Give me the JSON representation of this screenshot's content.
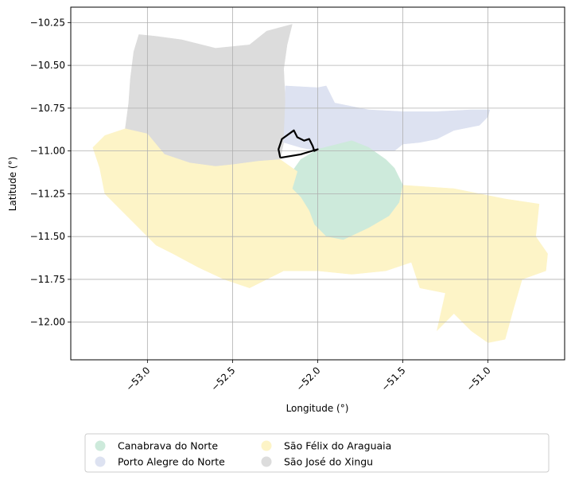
{
  "chart_data": {
    "type": "map",
    "xlabel": "Longitude (°)",
    "ylabel": "Latitude (°)",
    "xlim": [
      -53.45,
      -50.55
    ],
    "ylim": [
      -12.22,
      -10.16
    ],
    "x_ticks": [
      -53.0,
      -52.5,
      -52.0,
      -51.5,
      -51.0
    ],
    "x_tick_labels": [
      "−53.0",
      "−52.5",
      "−52.0",
      "−51.5",
      "−51.0"
    ],
    "y_ticks": [
      -10.25,
      -10.5,
      -10.75,
      -11.0,
      -11.25,
      -11.5,
      -11.75,
      -12.0
    ],
    "y_tick_labels": [
      "−10.25",
      "−10.50",
      "−10.75",
      "−11.00",
      "−11.25",
      "−11.50",
      "−11.75",
      "−12.00"
    ],
    "grid": true,
    "legend_position": "bottom",
    "regions": [
      {
        "name": "São José do Xingu",
        "color": "#dcdcdc",
        "coords": [
          [
            -53.13,
            -10.87
          ],
          [
            -53.11,
            -10.72
          ],
          [
            -53.1,
            -10.58
          ],
          [
            -53.08,
            -10.42
          ],
          [
            -53.05,
            -10.32
          ],
          [
            -52.95,
            -10.33
          ],
          [
            -52.8,
            -10.35
          ],
          [
            -52.6,
            -10.4
          ],
          [
            -52.4,
            -10.38
          ],
          [
            -52.3,
            -10.3
          ],
          [
            -52.15,
            -10.26
          ],
          [
            -52.18,
            -10.38
          ],
          [
            -52.2,
            -10.52
          ],
          [
            -52.19,
            -10.72
          ],
          [
            -52.2,
            -10.95
          ],
          [
            -52.22,
            -11.05
          ],
          [
            -52.35,
            -11.06
          ],
          [
            -52.5,
            -11.08
          ],
          [
            -52.6,
            -11.09
          ],
          [
            -52.75,
            -11.07
          ],
          [
            -52.9,
            -11.02
          ],
          [
            -53.1,
            -10.9
          ]
        ]
      },
      {
        "name": "Porto Alegre do Norte",
        "color": "#dde2f1",
        "coords": [
          [
            -52.19,
            -10.62
          ],
          [
            -52.0,
            -10.63
          ],
          [
            -51.95,
            -10.62
          ],
          [
            -51.9,
            -10.72
          ],
          [
            -51.8,
            -10.74
          ],
          [
            -51.7,
            -10.76
          ],
          [
            -51.5,
            -10.77
          ],
          [
            -51.3,
            -10.77
          ],
          [
            -51.1,
            -10.76
          ],
          [
            -50.99,
            -10.76
          ],
          [
            -51.0,
            -10.8
          ],
          [
            -51.05,
            -10.85
          ],
          [
            -51.2,
            -10.88
          ],
          [
            -51.3,
            -10.93
          ],
          [
            -51.4,
            -10.95
          ],
          [
            -51.5,
            -10.96
          ],
          [
            -51.55,
            -11.0
          ],
          [
            -51.7,
            -11.0
          ],
          [
            -51.85,
            -11.0
          ],
          [
            -52.0,
            -11.0
          ],
          [
            -52.1,
            -10.98
          ],
          [
            -52.2,
            -10.95
          ],
          [
            -52.19,
            -10.72
          ]
        ]
      },
      {
        "name": "Canabrava do Norte",
        "color": "#cdeadb",
        "coords": [
          [
            -52.0,
            -10.99
          ],
          [
            -51.8,
            -10.94
          ],
          [
            -51.7,
            -10.98
          ],
          [
            -51.6,
            -11.05
          ],
          [
            -51.55,
            -11.1
          ],
          [
            -51.5,
            -11.2
          ],
          [
            -51.52,
            -11.3
          ],
          [
            -51.58,
            -11.38
          ],
          [
            -51.7,
            -11.45
          ],
          [
            -51.85,
            -11.52
          ],
          [
            -51.95,
            -11.5
          ],
          [
            -52.02,
            -11.43
          ],
          [
            -52.05,
            -11.35
          ],
          [
            -52.1,
            -11.27
          ],
          [
            -52.15,
            -11.22
          ],
          [
            -52.15,
            -11.12
          ],
          [
            -52.1,
            -11.05
          ]
        ]
      },
      {
        "name": "São Félix do Araguaia",
        "color": "#fdf4c7",
        "coords": [
          [
            -53.32,
            -10.98
          ],
          [
            -53.25,
            -10.91
          ],
          [
            -53.13,
            -10.87
          ],
          [
            -53.0,
            -10.9
          ],
          [
            -52.9,
            -11.02
          ],
          [
            -52.75,
            -11.07
          ],
          [
            -52.6,
            -11.09
          ],
          [
            -52.5,
            -11.08
          ],
          [
            -52.35,
            -11.06
          ],
          [
            -52.22,
            -11.05
          ],
          [
            -52.12,
            -11.12
          ],
          [
            -52.15,
            -11.22
          ],
          [
            -52.1,
            -11.27
          ],
          [
            -52.05,
            -11.35
          ],
          [
            -52.02,
            -11.43
          ],
          [
            -51.95,
            -11.5
          ],
          [
            -51.85,
            -11.52
          ],
          [
            -51.7,
            -11.45
          ],
          [
            -51.58,
            -11.38
          ],
          [
            -51.52,
            -11.3
          ],
          [
            -51.5,
            -11.2
          ],
          [
            -51.2,
            -11.22
          ],
          [
            -50.9,
            -11.28
          ],
          [
            -50.7,
            -11.31
          ],
          [
            -50.72,
            -11.5
          ],
          [
            -50.65,
            -11.6
          ],
          [
            -50.66,
            -11.7
          ],
          [
            -50.8,
            -11.75
          ],
          [
            -50.85,
            -11.92
          ],
          [
            -50.9,
            -12.1
          ],
          [
            -51.0,
            -12.12
          ],
          [
            -51.1,
            -12.05
          ],
          [
            -51.2,
            -11.95
          ],
          [
            -51.3,
            -12.05
          ],
          [
            -51.25,
            -11.83
          ],
          [
            -51.4,
            -11.8
          ],
          [
            -51.45,
            -11.65
          ],
          [
            -51.6,
            -11.7
          ],
          [
            -51.8,
            -11.72
          ],
          [
            -52.0,
            -11.7
          ],
          [
            -52.2,
            -11.7
          ],
          [
            -52.4,
            -11.8
          ],
          [
            -52.55,
            -11.75
          ],
          [
            -52.7,
            -11.68
          ],
          [
            -52.85,
            -11.6
          ],
          [
            -52.95,
            -11.55
          ],
          [
            -53.05,
            -11.45
          ],
          [
            -53.15,
            -11.35
          ],
          [
            -53.25,
            -11.25
          ],
          [
            -53.28,
            -11.1
          ]
        ]
      }
    ],
    "highlight_outline": {
      "color": "#000000",
      "coords": [
        [
          -52.22,
          -11.04
        ],
        [
          -52.23,
          -10.99
        ],
        [
          -52.21,
          -10.93
        ],
        [
          -52.14,
          -10.88
        ],
        [
          -52.12,
          -10.92
        ],
        [
          -52.08,
          -10.94
        ],
        [
          -52.05,
          -10.93
        ],
        [
          -52.03,
          -10.97
        ],
        [
          -52.02,
          -11.0
        ],
        [
          -52.0,
          -10.99
        ],
        [
          -52.1,
          -11.02
        ],
        [
          -52.22,
          -11.04
        ]
      ]
    },
    "legend": [
      {
        "name": "Canabrava do Norte",
        "color": "#cdeadb"
      },
      {
        "name": "Porto Alegre do Norte",
        "color": "#dde2f1"
      },
      {
        "name": "São Félix do Araguaia",
        "color": "#fdf4c7"
      },
      {
        "name": "São José do Xingu",
        "color": "#dcdcdc"
      }
    ]
  }
}
